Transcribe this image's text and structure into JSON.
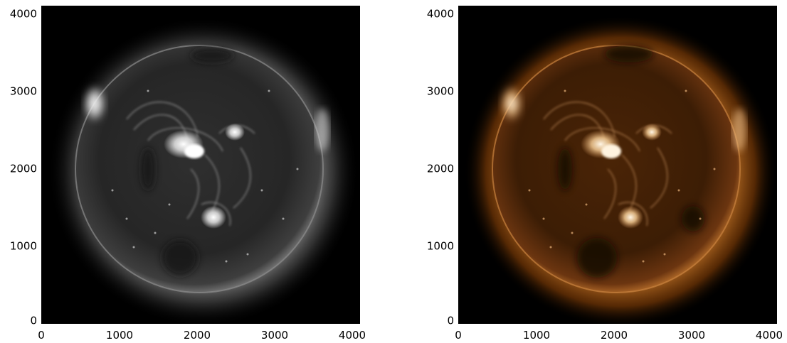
{
  "panels": [
    {
      "name": "grayscale",
      "colormap": [
        "#000000",
        "#ffffff"
      ],
      "x_ticks": [
        "0",
        "1000",
        "2000",
        "3000",
        "4000"
      ],
      "y_ticks": [
        "0",
        "1000",
        "2000",
        "3000",
        "4000"
      ]
    },
    {
      "name": "sdo-aia-orange",
      "colormap": [
        "#000000",
        "#7a3a06",
        "#c8792c",
        "#fff1d6"
      ],
      "x_ticks": [
        "0",
        "1000",
        "2000",
        "3000",
        "4000"
      ],
      "y_ticks": [
        "0",
        "1000",
        "2000",
        "3000",
        "4000"
      ]
    }
  ]
}
